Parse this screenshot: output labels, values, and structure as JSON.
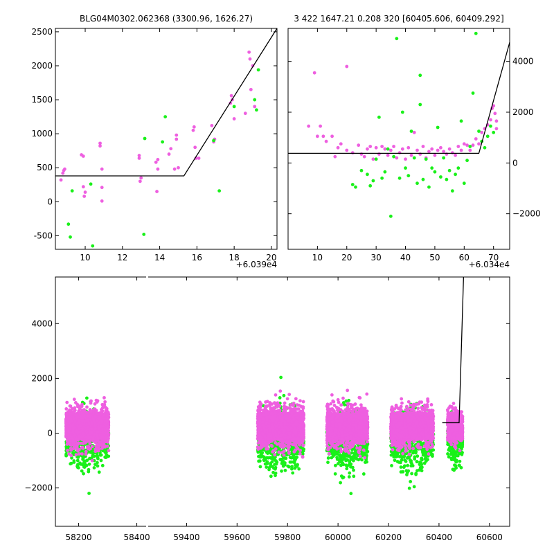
{
  "chart_data": [
    {
      "type": "scatter",
      "title": "BLG04M0302.062368 (3300.96, 1626.27)",
      "offset_label": "+6.039e4",
      "xlim": [
        8.4,
        20.3
      ],
      "ylim": [
        -700,
        2550
      ],
      "xticks": [
        "10",
        "12",
        "14",
        "16",
        "18",
        "20"
      ],
      "xtick_values": [
        10,
        12,
        14,
        16,
        18,
        20
      ],
      "yticks": [
        "-500",
        "0",
        "500",
        "1000",
        "1500",
        "2000",
        "2500"
      ],
      "ytick_values": [
        -500,
        0,
        500,
        1000,
        1500,
        2000,
        2500
      ],
      "y_axis_side": "left",
      "colors": {
        "series_a": "#ee5fe0",
        "series_b": "#19f019",
        "model": "#000000"
      },
      "model_line": [
        [
          8.4,
          380
        ],
        [
          15.3,
          380
        ],
        [
          20.3,
          2550
        ]
      ],
      "series": [
        {
          "color": "series_a",
          "points": [
            [
              8.7,
              320
            ],
            [
              8.8,
              420
            ],
            [
              8.85,
              460
            ],
            [
              8.9,
              480
            ],
            [
              9.8,
              690
            ],
            [
              9.9,
              670
            ],
            [
              9.9,
              220
            ],
            [
              9.95,
              80
            ],
            [
              10.0,
              140
            ],
            [
              10.8,
              820
            ],
            [
              10.8,
              860
            ],
            [
              10.9,
              210
            ],
            [
              10.9,
              480
            ],
            [
              10.9,
              10
            ],
            [
              12.9,
              640
            ],
            [
              12.9,
              680
            ],
            [
              13.0,
              350
            ],
            [
              12.95,
              300
            ],
            [
              13.8,
              580
            ],
            [
              13.9,
              620
            ],
            [
              13.85,
              150
            ],
            [
              13.9,
              480
            ],
            [
              14.5,
              700
            ],
            [
              14.6,
              780
            ],
            [
              14.9,
              920
            ],
            [
              14.9,
              980
            ],
            [
              14.8,
              480
            ],
            [
              15.0,
              500
            ],
            [
              15.8,
              1050
            ],
            [
              15.85,
              1100
            ],
            [
              15.9,
              800
            ],
            [
              15.95,
              640
            ],
            [
              16.1,
              640
            ],
            [
              16.8,
              1120
            ],
            [
              16.9,
              880
            ],
            [
              16.95,
              920
            ],
            [
              17.8,
              1450
            ],
            [
              17.9,
              1500
            ],
            [
              17.85,
              1560
            ],
            [
              18.0,
              1220
            ],
            [
              18.6,
              1300
            ],
            [
              18.8,
              2200
            ],
            [
              18.85,
              2100
            ],
            [
              18.9,
              1650
            ],
            [
              19.0,
              2000
            ],
            [
              19.1,
              1400
            ]
          ]
        },
        {
          "color": "series_b",
          "points": [
            [
              9.1,
              -330
            ],
            [
              9.2,
              -520
            ],
            [
              9.3,
              160
            ],
            [
              10.3,
              260
            ],
            [
              10.4,
              -650
            ],
            [
              13.2,
              930
            ],
            [
              13.15,
              -480
            ],
            [
              14.3,
              1250
            ],
            [
              14.15,
              880
            ],
            [
              16.9,
              900
            ],
            [
              17.2,
              160
            ],
            [
              18.0,
              1400
            ],
            [
              19.1,
              1500
            ],
            [
              19.2,
              1350
            ],
            [
              19.3,
              1940
            ]
          ]
        }
      ]
    },
    {
      "type": "scatter",
      "title": "3 422 1647.21 0.208 320 [60405.606, 60409.292]",
      "offset_label": "+6.034e4",
      "xlim": [
        0,
        75.5
      ],
      "ylim": [
        -3400,
        5300
      ],
      "xticks": [
        "10",
        "20",
        "30",
        "40",
        "50",
        "60",
        "70"
      ],
      "xtick_values": [
        10,
        20,
        30,
        40,
        50,
        60,
        70
      ],
      "yticks": [
        "−2000",
        "0",
        "2000",
        "4000"
      ],
      "ytick_values": [
        -2000,
        0,
        2000,
        4000
      ],
      "y_axis_side": "right",
      "model_line": [
        [
          0,
          380
        ],
        [
          65,
          380
        ],
        [
          75.5,
          4750
        ]
      ],
      "series": [
        {
          "color": "series_a",
          "points": [
            [
              7,
              1450
            ],
            [
              9,
              3550
            ],
            [
              10,
              1050
            ],
            [
              11,
              1450
            ],
            [
              12,
              1050
            ],
            [
              13,
              850
            ],
            [
              15,
              1050
            ],
            [
              16,
              250
            ],
            [
              17,
              600
            ],
            [
              18,
              750
            ],
            [
              20,
              3800
            ],
            [
              20,
              500
            ],
            [
              22,
              400
            ],
            [
              24,
              700
            ],
            [
              25,
              350
            ],
            [
              26,
              250
            ],
            [
              27,
              550
            ],
            [
              28,
              650
            ],
            [
              29,
              150
            ],
            [
              30,
              600
            ],
            [
              31,
              350
            ],
            [
              32,
              650
            ],
            [
              33,
              550
            ],
            [
              34,
              300
            ],
            [
              35,
              500
            ],
            [
              36,
              650
            ],
            [
              37,
              200
            ],
            [
              38,
              400
            ],
            [
              39,
              550
            ],
            [
              40,
              150
            ],
            [
              41,
              600
            ],
            [
              42,
              300
            ],
            [
              43,
              1200
            ],
            [
              44,
              500
            ],
            [
              45,
              350
            ],
            [
              46,
              650
            ],
            [
              47,
              200
            ],
            [
              48,
              450
            ],
            [
              49,
              550
            ],
            [
              50,
              300
            ],
            [
              51,
              500
            ],
            [
              52,
              600
            ],
            [
              53,
              450
            ],
            [
              54,
              350
            ],
            [
              55,
              550
            ],
            [
              56,
              400
            ],
            [
              57,
              300
            ],
            [
              58,
              650
            ],
            [
              59,
              500
            ],
            [
              60,
              750
            ],
            [
              61,
              700
            ],
            [
              62,
              500
            ],
            [
              63,
              700
            ],
            [
              64,
              950
            ],
            [
              65,
              750
            ],
            [
              66,
              1200
            ],
            [
              67,
              1350
            ],
            [
              68,
              1500
            ],
            [
              69,
              1700
            ],
            [
              69.5,
              2150
            ],
            [
              70,
              2250
            ],
            [
              70.5,
              1950
            ],
            [
              71,
              1650
            ],
            [
              71,
              1350
            ]
          ]
        },
        {
          "color": "series_b",
          "points": [
            [
              22,
              -850
            ],
            [
              23,
              -950
            ],
            [
              25,
              -300
            ],
            [
              27,
              -450
            ],
            [
              28,
              -900
            ],
            [
              29,
              -700
            ],
            [
              30,
              150
            ],
            [
              31,
              1800
            ],
            [
              32,
              -600
            ],
            [
              33,
              -350
            ],
            [
              34,
              550
            ],
            [
              35,
              -2100
            ],
            [
              36,
              250
            ],
            [
              37,
              4900
            ],
            [
              38,
              -600
            ],
            [
              39,
              2000
            ],
            [
              40,
              -200
            ],
            [
              41,
              -500
            ],
            [
              42,
              1250
            ],
            [
              43,
              200
            ],
            [
              44,
              -800
            ],
            [
              45,
              2300
            ],
            [
              45,
              3450
            ],
            [
              46,
              -650
            ],
            [
              47,
              150
            ],
            [
              48,
              -950
            ],
            [
              49,
              -200
            ],
            [
              50,
              -350
            ],
            [
              51,
              1400
            ],
            [
              52,
              -550
            ],
            [
              53,
              200
            ],
            [
              54,
              -650
            ],
            [
              55,
              -300
            ],
            [
              56,
              -1100
            ],
            [
              57,
              -450
            ],
            [
              58,
              -200
            ],
            [
              59,
              1650
            ],
            [
              60,
              -800
            ],
            [
              61,
              100
            ],
            [
              62,
              650
            ],
            [
              63,
              2750
            ],
            [
              64,
              5100
            ],
            [
              65,
              1250
            ],
            [
              66,
              850
            ],
            [
              67,
              600
            ],
            [
              68,
              1050
            ],
            [
              69,
              1450
            ],
            [
              70,
              1200
            ]
          ]
        }
      ]
    },
    {
      "type": "scatter",
      "xlim": [
        58120,
        60680
      ],
      "ylim": [
        -3400,
        5700
      ],
      "xticks": [
        "58200",
        "58400",
        "59400",
        "59600",
        "59800",
        "60000",
        "60200",
        "60400",
        "60600"
      ],
      "xtick_values": [
        58200,
        58400,
        59400,
        59600,
        59800,
        60000,
        60200,
        60400,
        60600
      ],
      "yticks": [
        "−2000",
        "0",
        "2000",
        "4000"
      ],
      "ytick_values": [
        -2000,
        0,
        2000,
        4000
      ],
      "y_axis_side": "left",
      "broken_axis": {
        "gap_start": 58432,
        "gap_end": 59248
      },
      "model_line": [
        [
          60300,
          380
        ],
        [
          60395,
          380
        ],
        [
          60420,
          5700
        ]
      ],
      "clusters": [
        {
          "x_range": [
            58180,
            58420
          ],
          "core_halfwidth": 320,
          "spread": 2600
        },
        {
          "x_range": [
            59260,
            59520
          ],
          "core_halfwidth": 340,
          "spread": 2800
        },
        {
          "x_range": [
            59650,
            59880
          ],
          "core_halfwidth": 330,
          "spread": 2700
        },
        {
          "x_range": [
            60010,
            60250
          ],
          "core_halfwidth": 330,
          "spread": 2600
        },
        {
          "x_range": [
            60330,
            60415
          ],
          "core_halfwidth": 320,
          "spread": 2200
        }
      ]
    }
  ]
}
